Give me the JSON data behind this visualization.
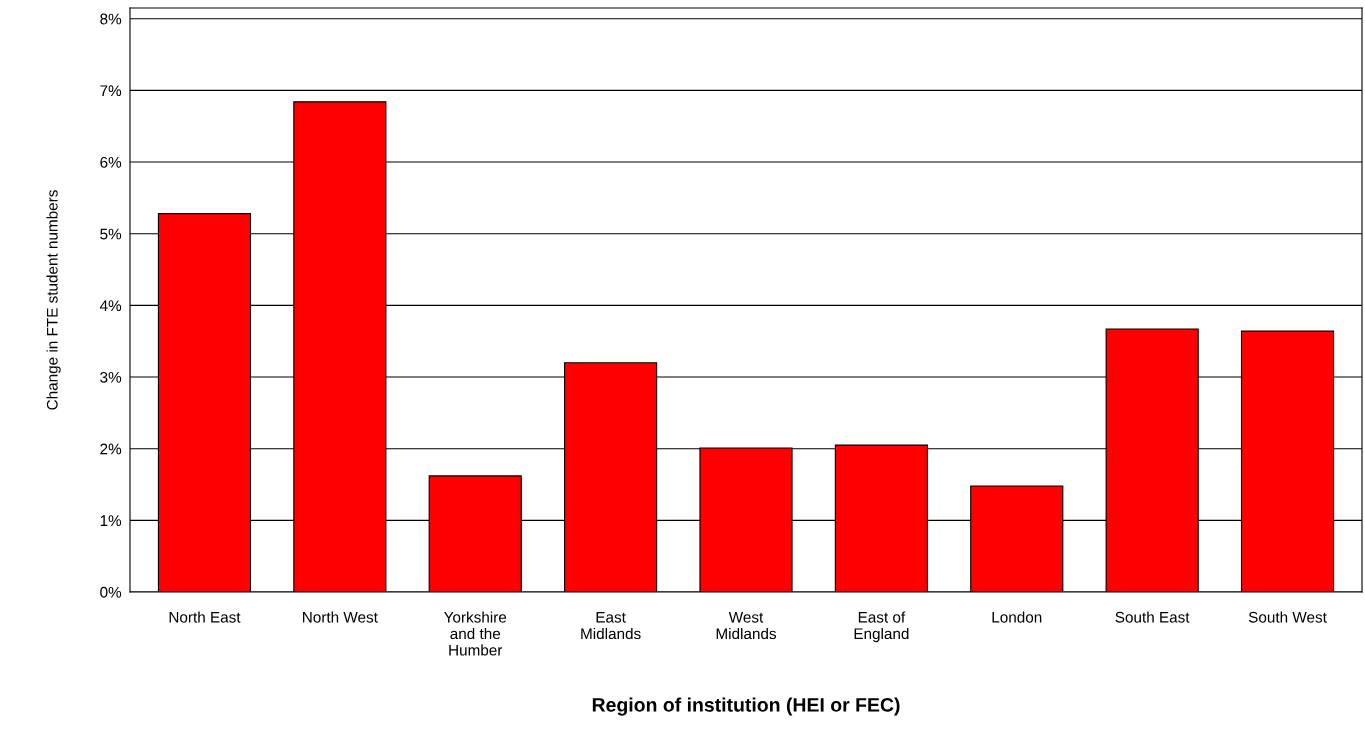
{
  "chart_data": {
    "type": "bar",
    "xlabel": "Region of institution (HEI or FEC)",
    "ylabel": "Change in FTE student numbers",
    "categories": [
      "North East",
      "North West",
      "Yorkshire\nand the\nHumber",
      "East\nMidlands",
      "West\nMidlands",
      "East of\nEngland",
      "London",
      "South East",
      "South West"
    ],
    "values": [
      5.28,
      6.84,
      1.62,
      3.2,
      2.01,
      2.05,
      1.48,
      3.67,
      3.64
    ],
    "color": "#ff0000",
    "ylim": [
      0,
      8.15
    ],
    "yticks": [
      {
        "value": 0,
        "label": "0%"
      },
      {
        "value": 1,
        "label": "1%"
      },
      {
        "value": 2,
        "label": "2%"
      },
      {
        "value": 3,
        "label": "3%"
      },
      {
        "value": 4,
        "label": "4%"
      },
      {
        "value": 5,
        "label": "5%"
      },
      {
        "value": 6,
        "label": "6%"
      },
      {
        "value": 7,
        "label": "7%"
      },
      {
        "value": 8,
        "label": "8%"
      }
    ],
    "grid": "y"
  }
}
